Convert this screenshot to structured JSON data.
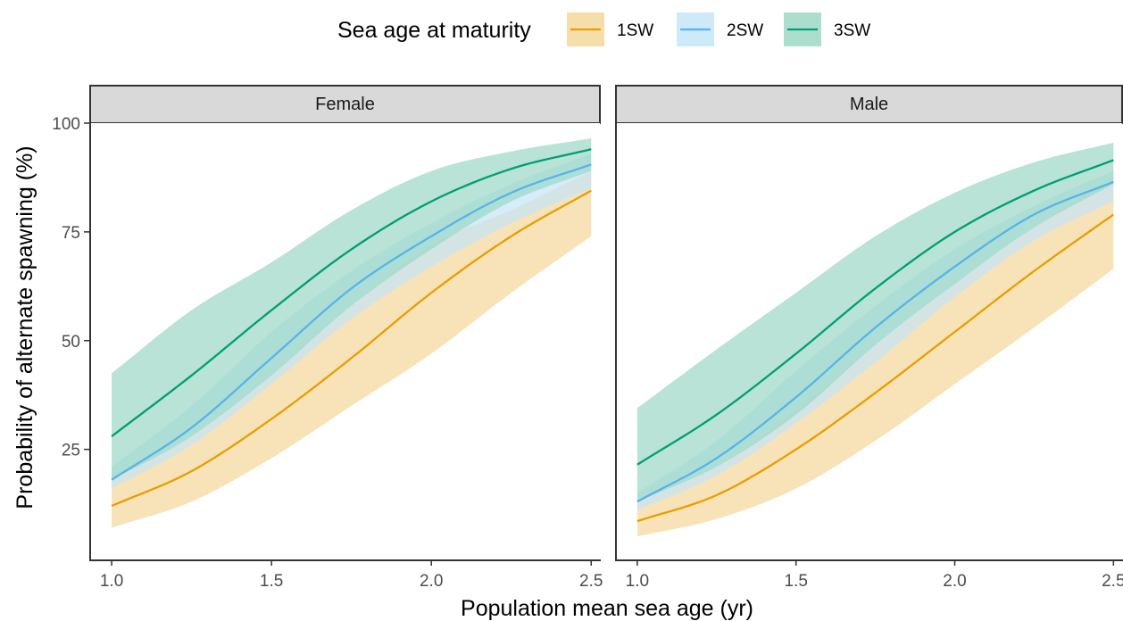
{
  "chart_data": {
    "type": "line",
    "title": "",
    "xlabel": "Population mean sea age (yr)",
    "ylabel": "Probability of alternate spawning (%)",
    "xlim": [
      0.93,
      2.53
    ],
    "ylim": [
      -0.5,
      100
    ],
    "x_ticks": [
      "1.0",
      "1.5",
      "2.0",
      "2.5"
    ],
    "y_ticks": [
      "25",
      "50",
      "75",
      "100"
    ],
    "legend": {
      "title": "Sea age at maturity",
      "placement": "top",
      "entries": [
        "1SW",
        "2SW",
        "3SW"
      ]
    },
    "colors": {
      "1SW": "#E69F00",
      "2SW": "#56B4E9",
      "3SW": "#009E73",
      "1SW_band": "#F5D89C",
      "2SW_band": "#C6E5F7",
      "3SW_band": "#9DD8C6",
      "strip_fill": "#d9d9d9"
    },
    "panels": [
      {
        "label": "Female",
        "series": [
          {
            "name": "1SW",
            "x": [
              1.0,
              1.25,
              1.5,
              1.75,
              2.0,
              2.25,
              2.5
            ],
            "y": [
              12,
              20,
              32,
              46,
              61,
              74,
              84.5
            ],
            "lower": [
              7,
              13,
              23,
              35,
              47,
              61,
              74
            ],
            "upper": [
              19,
              28,
              42,
              58,
              72,
              80,
              89
            ]
          },
          {
            "name": "2SW",
            "x": [
              1.0,
              1.25,
              1.5,
              1.75,
              2.0,
              2.25,
              2.5
            ],
            "y": [
              18,
              30,
              46,
              62,
              74,
              84,
              90.5
            ],
            "lower": [
              16,
              26,
              40,
              55,
              67,
              77,
              85
            ],
            "upper": [
              21,
              35,
              52,
              66,
              77,
              86,
              93
            ]
          },
          {
            "name": "3SW",
            "x": [
              1.0,
              1.25,
              1.5,
              1.75,
              2.0,
              2.25,
              2.5
            ],
            "y": [
              28,
              42,
              57,
              71,
              82,
              89.5,
              94
            ],
            "lower": [
              18,
              28,
              42,
              58,
              71,
              82,
              89
            ],
            "upper": [
              42.5,
              57,
              68,
              80,
              89,
              93.5,
              96.5
            ]
          }
        ]
      },
      {
        "label": "Male",
        "series": [
          {
            "name": "1SW",
            "x": [
              1.0,
              1.25,
              1.5,
              1.75,
              2.0,
              2.25,
              2.5
            ],
            "y": [
              8.5,
              14.5,
              25,
              38,
              52,
              66,
              79
            ],
            "lower": [
              5,
              9,
              16,
              27,
              40,
              53,
              66.5
            ],
            "upper": [
              13,
              21,
              34,
              49,
              63,
              76,
              87.5
            ]
          },
          {
            "name": "2SW",
            "x": [
              1.0,
              1.25,
              1.5,
              1.75,
              2.0,
              2.25,
              2.5
            ],
            "y": [
              13,
              23,
              37,
              53,
              67,
              79,
              86.5
            ],
            "lower": [
              11,
              19,
              31,
              45,
              60,
              73,
              82
            ],
            "upper": [
              15,
              27,
              43,
              58,
              71,
              81,
              89
            ]
          },
          {
            "name": "3SW",
            "x": [
              1.0,
              1.25,
              1.5,
              1.75,
              2.0,
              2.25,
              2.5
            ],
            "y": [
              21.5,
              33,
              47,
              62,
              75,
              84.5,
              91.5
            ],
            "lower": [
              13,
              21,
              33,
              49,
              63,
              76,
              86
            ],
            "upper": [
              34.5,
              48,
              61,
              74,
              84,
              91,
              95.5
            ]
          }
        ]
      }
    ]
  }
}
